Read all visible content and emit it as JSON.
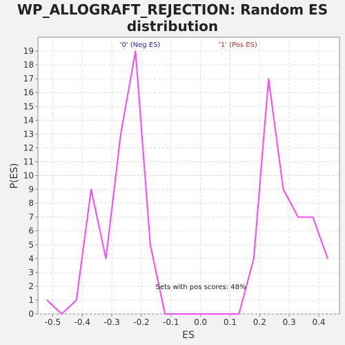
{
  "chart_data": {
    "type": "line",
    "title_line1": "WP_ALLOGRAFT_REJECTION: Random ES",
    "title_line2": "distribution",
    "xlabel": "ES",
    "ylabel": "P(ES)",
    "xlim": [
      -0.55,
      0.47
    ],
    "ylim": [
      0,
      20
    ],
    "grid": true,
    "x_ticks": [
      "-0.5",
      "-0.4",
      "-0.3",
      "-0.2",
      "-0.1",
      "0.0",
      "0.1",
      "0.2",
      "0.3",
      "0.4"
    ],
    "x_tick_values": [
      -0.5,
      -0.4,
      -0.3,
      -0.2,
      -0.1,
      0.0,
      0.1,
      0.2,
      0.3,
      0.4
    ],
    "y_ticks": [
      0,
      1,
      2,
      3,
      4,
      5,
      6,
      7,
      8,
      9,
      10,
      11,
      12,
      13,
      14,
      15,
      16,
      17,
      18,
      19
    ],
    "series": [
      {
        "color": "#ff44ff",
        "x": [
          -0.52,
          -0.47,
          -0.42,
          -0.37,
          -0.32,
          -0.27,
          -0.22,
          -0.17,
          -0.12,
          -0.07,
          0.03,
          0.13,
          0.18,
          0.23,
          0.28,
          0.33,
          0.38,
          0.43
        ],
        "y": [
          1,
          0,
          1,
          9,
          4,
          13,
          19,
          5,
          0,
          0,
          0,
          0,
          4,
          17,
          9,
          7,
          7,
          4
        ]
      }
    ],
    "annotations": {
      "neg": {
        "text": "'0' (Neg ES)",
        "color": "#2222cc"
      },
      "pos": {
        "text": "'1' (Pos ES)",
        "color": "#dd2222"
      },
      "sets": {
        "text": "Sets with pos scores: 48%",
        "color": "#222222"
      }
    }
  }
}
